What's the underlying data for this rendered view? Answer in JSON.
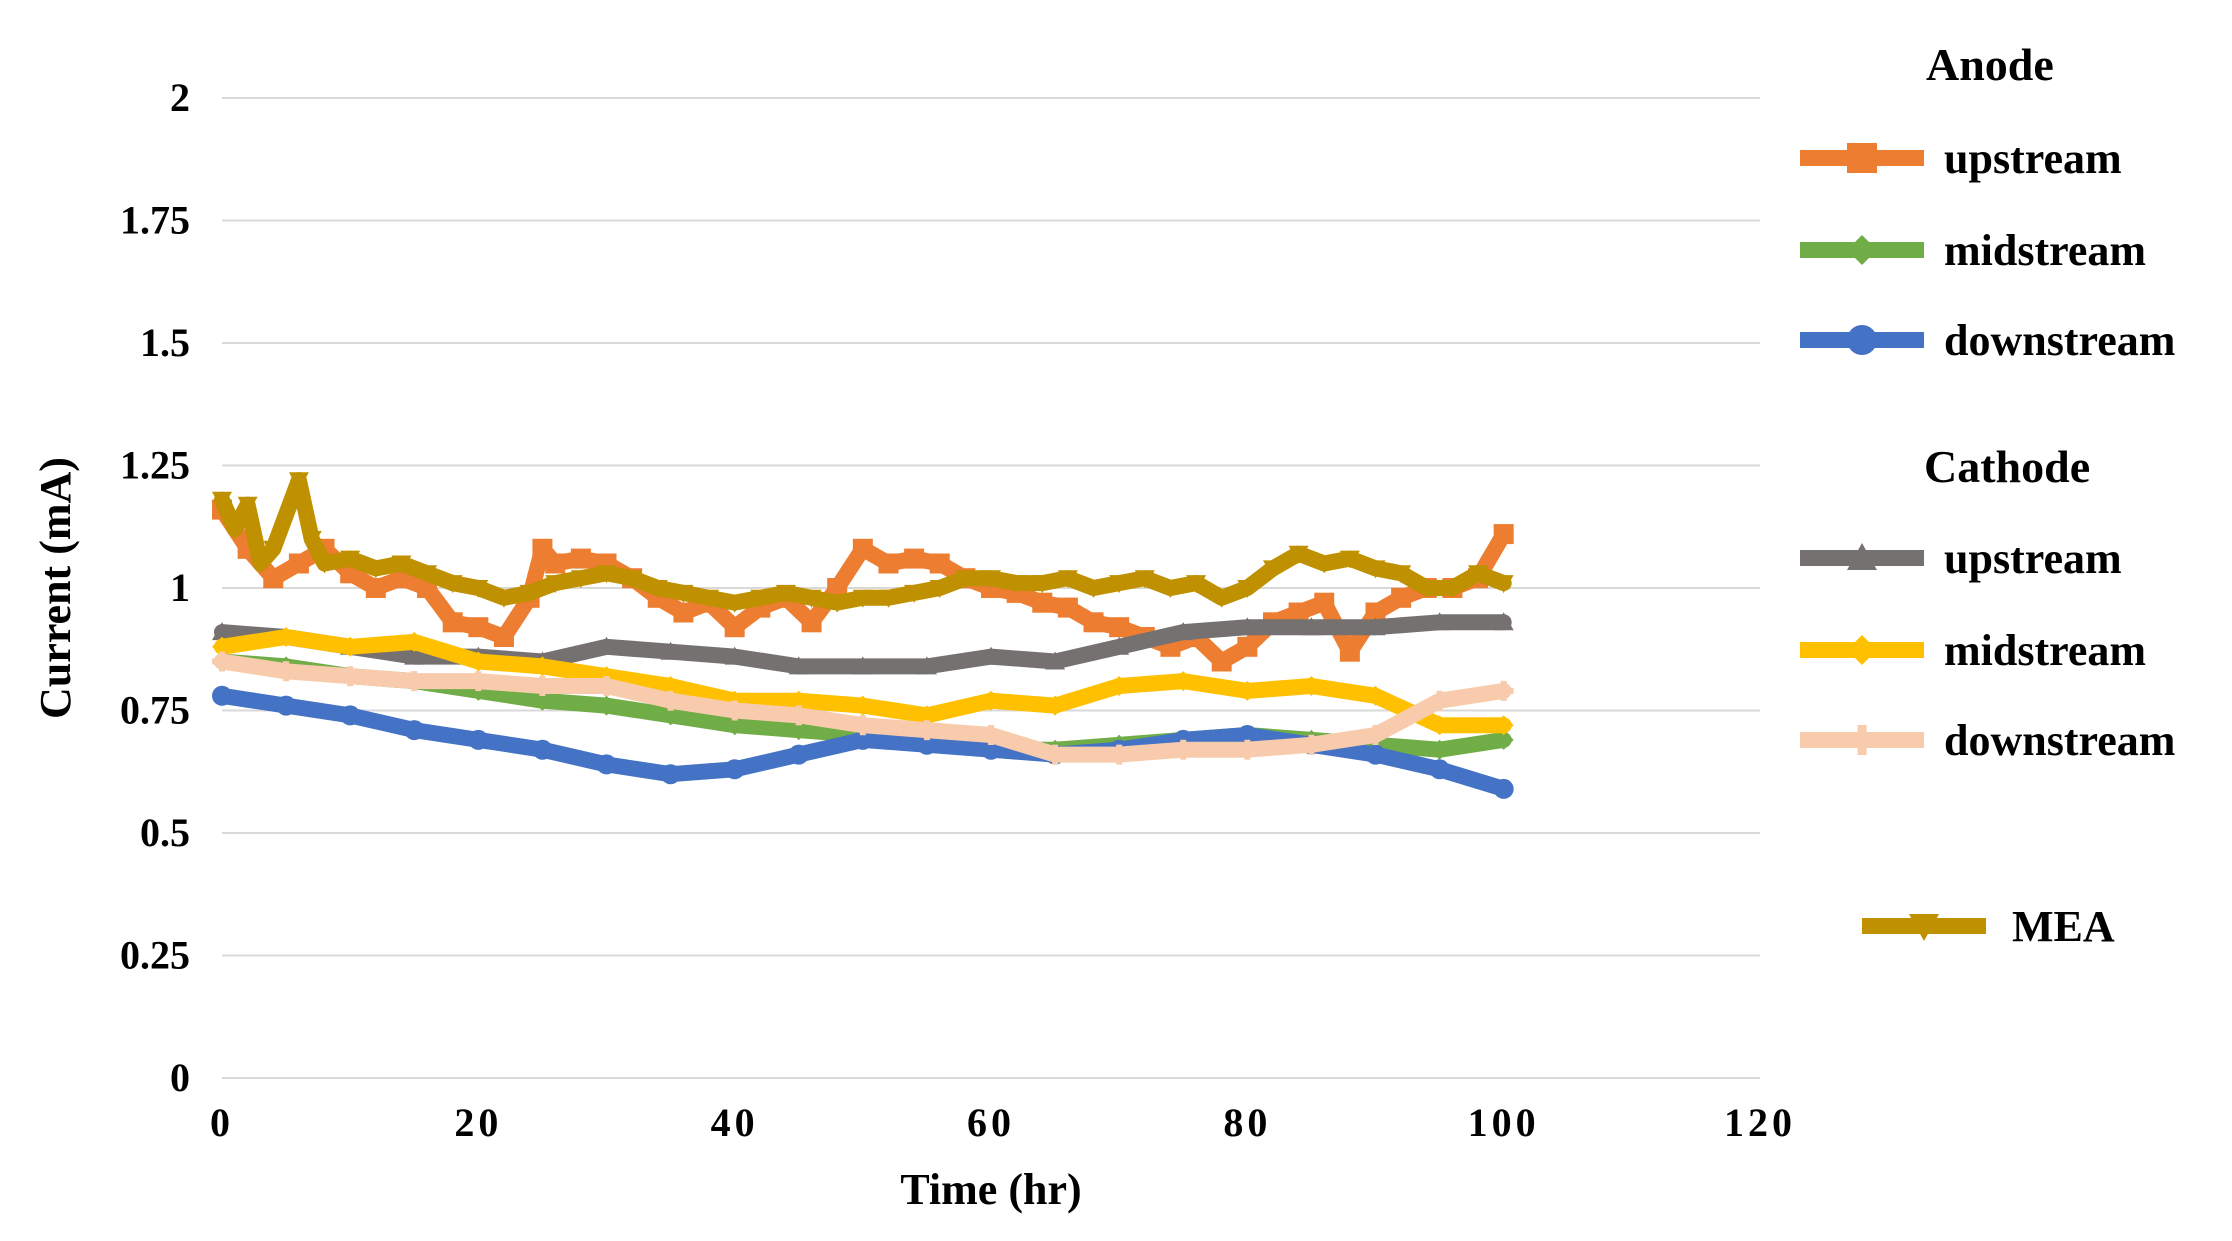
{
  "chart_data": {
    "type": "line",
    "title": "",
    "xlabel": "Time (hr)",
    "ylabel": "Current (mA)",
    "xlim": [
      0,
      120
    ],
    "ylim": [
      0,
      2
    ],
    "x_ticks": [
      "0",
      "20",
      "40",
      "60",
      "80",
      "100",
      "120"
    ],
    "y_ticks": [
      "0",
      "0.25",
      "0.5",
      "0.75",
      "1",
      "1.25",
      "1.5",
      "1.75",
      "2"
    ],
    "grid": "horizontal",
    "legend": {
      "placement": "right",
      "groups": [
        {
          "title": "Anode",
          "entries": [
            "upstream",
            "midstream",
            "downstream"
          ]
        },
        {
          "title": "Cathode",
          "entries": [
            "upstream",
            "midstream",
            "downstream"
          ]
        },
        {
          "title": "",
          "entries": [
            "MEA"
          ]
        }
      ]
    },
    "series": [
      {
        "name": "upstream",
        "group": "Anode",
        "color": "#ED7D31",
        "marker": "square",
        "x": [
          0,
          2,
          4,
          6,
          8,
          10,
          12,
          14,
          16,
          18,
          20,
          22,
          24,
          25,
          26,
          28,
          30,
          32,
          34,
          36,
          38,
          40,
          42,
          44,
          46,
          48,
          50,
          52,
          54,
          56,
          58,
          60,
          62,
          64,
          66,
          68,
          70,
          72,
          74,
          76,
          78,
          80,
          82,
          84,
          86,
          88,
          90,
          92,
          94,
          96,
          98,
          100
        ],
        "values": [
          1.16,
          1.08,
          1.02,
          1.05,
          1.08,
          1.03,
          1.0,
          1.02,
          1.0,
          0.93,
          0.92,
          0.9,
          0.98,
          1.08,
          1.05,
          1.06,
          1.05,
          1.02,
          0.98,
          0.95,
          0.97,
          0.92,
          0.96,
          0.98,
          0.93,
          1.0,
          1.08,
          1.05,
          1.06,
          1.05,
          1.02,
          1.0,
          0.99,
          0.97,
          0.96,
          0.93,
          0.92,
          0.9,
          0.88,
          0.9,
          0.85,
          0.88,
          0.93,
          0.95,
          0.97,
          0.87,
          0.95,
          0.98,
          1.0,
          1.0,
          1.02,
          1.11
        ]
      },
      {
        "name": "midstream",
        "group": "Anode",
        "color": "#70AD47",
        "marker": "diamond",
        "x": [
          0,
          5,
          10,
          15,
          20,
          25,
          30,
          35,
          40,
          45,
          50,
          55,
          60,
          65,
          70,
          75,
          80,
          85,
          90,
          95,
          100
        ],
        "values": [
          0.85,
          0.84,
          0.82,
          0.81,
          0.79,
          0.77,
          0.76,
          0.74,
          0.72,
          0.71,
          0.7,
          0.69,
          0.67,
          0.67,
          0.68,
          0.69,
          0.7,
          0.69,
          0.68,
          0.67,
          0.69
        ]
      },
      {
        "name": "downstream",
        "group": "Anode",
        "color": "#4472C4",
        "marker": "circle",
        "x": [
          0,
          5,
          10,
          15,
          20,
          25,
          30,
          35,
          40,
          45,
          50,
          55,
          60,
          65,
          70,
          75,
          80,
          85,
          90,
          95,
          100
        ],
        "values": [
          0.78,
          0.76,
          0.74,
          0.71,
          0.69,
          0.67,
          0.64,
          0.62,
          0.63,
          0.66,
          0.69,
          0.68,
          0.67,
          0.66,
          0.67,
          0.69,
          0.7,
          0.68,
          0.66,
          0.63,
          0.59
        ]
      },
      {
        "name": "upstream",
        "group": "Cathode",
        "color": "#767171",
        "marker": "triangle",
        "x": [
          0,
          5,
          10,
          15,
          20,
          25,
          30,
          35,
          40,
          45,
          50,
          55,
          60,
          65,
          70,
          75,
          80,
          85,
          90,
          95,
          100
        ],
        "values": [
          0.91,
          0.9,
          0.88,
          0.86,
          0.86,
          0.85,
          0.88,
          0.87,
          0.86,
          0.84,
          0.84,
          0.84,
          0.86,
          0.85,
          0.88,
          0.91,
          0.92,
          0.92,
          0.92,
          0.93,
          0.93
        ]
      },
      {
        "name": "midstream",
        "group": "Cathode",
        "color": "#FFC000",
        "marker": "diamond",
        "x": [
          0,
          5,
          10,
          15,
          20,
          25,
          30,
          35,
          40,
          45,
          50,
          55,
          60,
          65,
          70,
          75,
          80,
          85,
          90,
          95,
          100
        ],
        "values": [
          0.88,
          0.9,
          0.88,
          0.89,
          0.85,
          0.84,
          0.82,
          0.8,
          0.77,
          0.77,
          0.76,
          0.74,
          0.77,
          0.76,
          0.8,
          0.81,
          0.79,
          0.8,
          0.78,
          0.72,
          0.72
        ]
      },
      {
        "name": "downstream",
        "group": "Cathode",
        "color": "#F8CBAD",
        "marker": "plus",
        "x": [
          0,
          5,
          10,
          15,
          20,
          25,
          30,
          35,
          40,
          45,
          50,
          55,
          60,
          65,
          70,
          75,
          80,
          85,
          90,
          95,
          100
        ],
        "values": [
          0.85,
          0.83,
          0.82,
          0.81,
          0.81,
          0.8,
          0.8,
          0.77,
          0.75,
          0.74,
          0.72,
          0.71,
          0.7,
          0.66,
          0.66,
          0.67,
          0.67,
          0.68,
          0.7,
          0.77,
          0.79
        ]
      },
      {
        "name": "MEA",
        "group": "",
        "color": "#BF9000",
        "marker": "triangle-down",
        "x": [
          0,
          1,
          2,
          3,
          4,
          6,
          7,
          8,
          10,
          12,
          14,
          16,
          18,
          20,
          22,
          24,
          26,
          28,
          30,
          32,
          34,
          36,
          38,
          40,
          42,
          44,
          46,
          48,
          50,
          52,
          54,
          56,
          58,
          60,
          62,
          64,
          66,
          68,
          70,
          72,
          74,
          76,
          78,
          80,
          82,
          84,
          86,
          88,
          90,
          92,
          94,
          96,
          98,
          100
        ],
        "values": [
          1.18,
          1.12,
          1.17,
          1.05,
          1.08,
          1.22,
          1.1,
          1.05,
          1.06,
          1.04,
          1.05,
          1.03,
          1.01,
          1.0,
          0.98,
          0.99,
          1.01,
          1.02,
          1.03,
          1.02,
          1.0,
          0.99,
          0.98,
          0.97,
          0.98,
          0.99,
          0.98,
          0.97,
          0.98,
          0.98,
          0.99,
          1.0,
          1.02,
          1.02,
          1.01,
          1.01,
          1.02,
          1.0,
          1.01,
          1.02,
          1.0,
          1.01,
          0.98,
          1.0,
          1.04,
          1.07,
          1.05,
          1.06,
          1.04,
          1.03,
          1.0,
          1.0,
          1.03,
          1.01
        ]
      }
    ]
  }
}
